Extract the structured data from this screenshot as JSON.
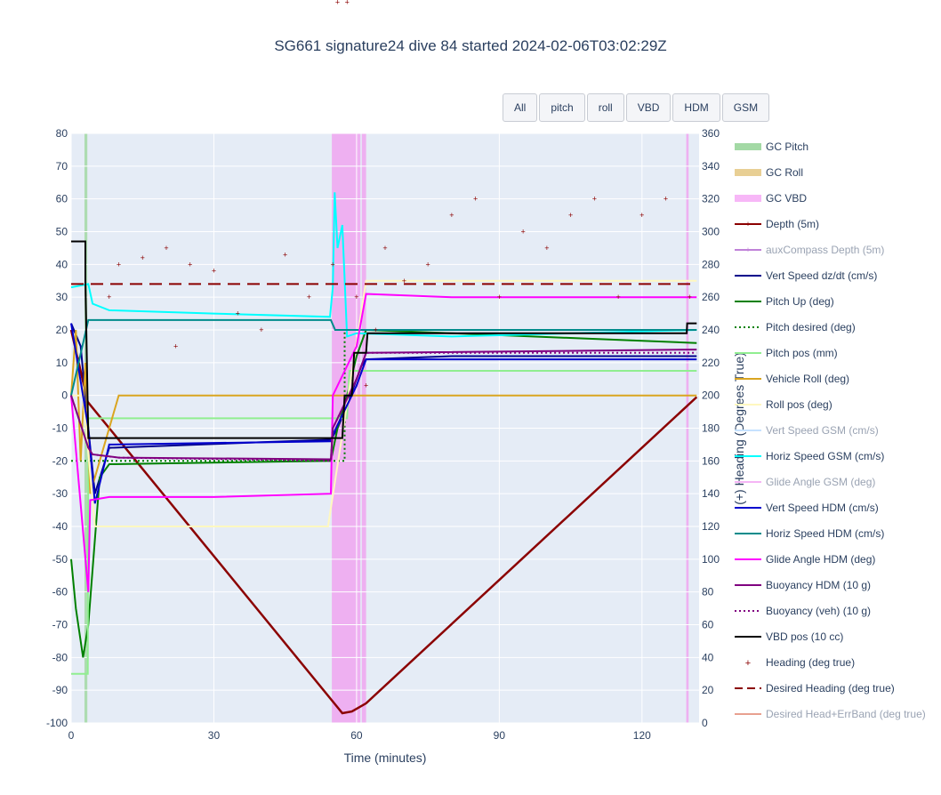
{
  "title": "SG661 signature24 dive 84 started 2024-02-06T03:02:29Z",
  "buttons": [
    "All",
    "pitch",
    "roll",
    "VBD",
    "HDM",
    "GSM"
  ],
  "chart_data": {
    "type": "line",
    "xlabel": "Time (minutes)",
    "xlim": [
      0,
      132
    ],
    "xticks": [
      0,
      30,
      60,
      90,
      120
    ],
    "y_left": {
      "label": "",
      "lim": [
        -100,
        80
      ],
      "ticks": [
        -100,
        -90,
        -80,
        -70,
        -60,
        -50,
        -40,
        -30,
        -20,
        -10,
        0,
        10,
        20,
        30,
        40,
        50,
        60,
        70,
        80
      ]
    },
    "y_right": {
      "label": "(+) Heading (Degrees True)",
      "lim": [
        0,
        360
      ],
      "ticks": [
        0,
        20,
        40,
        60,
        80,
        100,
        120,
        140,
        160,
        180,
        200,
        220,
        240,
        260,
        280,
        300,
        320,
        340,
        360
      ]
    },
    "grid": true,
    "legend_position": "right",
    "shaded_regions": [
      {
        "name": "GC Pitch",
        "color": "#a3d9a5",
        "intervals": [
          [
            2.8,
            3.4
          ]
        ]
      },
      {
        "name": "GC VBD",
        "color": "#f0a6f0",
        "intervals": [
          [
            54.8,
            60.8
          ],
          [
            61.1,
            62.0
          ],
          [
            129.3,
            129.8
          ]
        ]
      }
    ],
    "series": [
      {
        "name": "GC Pitch",
        "color": "#a3d9a5",
        "style": "band"
      },
      {
        "name": "GC Roll",
        "color": "#e8cf94",
        "style": "band"
      },
      {
        "name": "GC VBD",
        "color": "#f7b7f7",
        "style": "band"
      },
      {
        "name": "Depth (5m)",
        "color": "#8b0000",
        "style": "line-marker",
        "x": [
          0,
          3.5,
          57,
          59,
          62,
          131.5
        ],
        "y": [
          20,
          -2,
          -97,
          -96.5,
          -94,
          -0.5
        ]
      },
      {
        "name": "auxCompass Depth (5m)",
        "color": "#c082d8",
        "style": "line-marker",
        "dim": true
      },
      {
        "name": "Vert Speed dz/dt (cm/s)",
        "color": "#00008b",
        "style": "line",
        "x": [
          0,
          2,
          3.6,
          5,
          8,
          54.6,
          56,
          58,
          60,
          61,
          62,
          80,
          100,
          131.5
        ],
        "y": [
          22,
          15,
          -10,
          -30,
          -16,
          -13.5,
          -10,
          -3,
          5,
          9,
          11,
          12,
          12,
          12
        ]
      },
      {
        "name": "Pitch Up (deg)",
        "color": "#008000",
        "style": "line",
        "x": [
          0,
          1,
          2.5,
          3.6,
          6,
          8,
          54.6,
          56,
          58,
          60,
          62,
          80,
          131.5
        ],
        "y": [
          -50,
          -65,
          -80,
          -70,
          -25,
          -21,
          -20,
          -10,
          0,
          12,
          20,
          19,
          16
        ]
      },
      {
        "name": "Pitch desired (deg)",
        "color": "#008000",
        "style": "dot",
        "x": [
          0,
          3.6,
          54.6,
          57.5,
          57.5,
          131.5
        ],
        "y": [
          -20,
          -20,
          -20,
          -20,
          20,
          20
        ]
      },
      {
        "name": "Pitch pos (mm)",
        "color": "#90ee90",
        "style": "line",
        "x": [
          0,
          3.5,
          3.6,
          54.6,
          55,
          58,
          58.5,
          131.5
        ],
        "y": [
          -85,
          -85,
          -7,
          -7,
          -7,
          -7,
          7.5,
          7.5
        ]
      },
      {
        "name": "Vehicle Roll (deg)",
        "color": "#daa520",
        "style": "line",
        "x": [
          0,
          1,
          2,
          3,
          4,
          6,
          10,
          54.6,
          60,
          62,
          131.5
        ],
        "y": [
          0,
          20,
          -20,
          10,
          -30,
          -20,
          0,
          0,
          0,
          0,
          0
        ]
      },
      {
        "name": "Roll pos (deg)",
        "color": "#fff8c0",
        "style": "line",
        "x": [
          0,
          2.5,
          5,
          9,
          54,
          62,
          131.5
        ],
        "y": [
          0,
          0,
          -40,
          -40,
          -40,
          35,
          35
        ]
      },
      {
        "name": "Vert Speed GSM (cm/s)",
        "color": "#c6e2ff",
        "style": "line",
        "dim": true
      },
      {
        "name": "Horiz Speed GSM (cm/s)",
        "color": "#00ffff",
        "style": "line",
        "x": [
          0,
          3.6,
          4.5,
          8,
          30,
          54.4,
          55,
          55.4,
          56,
          57,
          58,
          60,
          80,
          131.5
        ],
        "y": [
          33,
          34,
          28,
          26,
          25,
          24,
          33,
          62,
          45,
          52,
          18,
          19,
          18,
          20
        ]
      },
      {
        "name": "Glide Angle GSM (deg)",
        "color": "#f5b5f5",
        "style": "line",
        "dim": true
      },
      {
        "name": "Vert Speed HDM (cm/s)",
        "color": "#0000cd",
        "style": "line",
        "x": [
          0,
          3.6,
          5,
          8,
          54.6,
          55,
          60,
          62,
          131.5
        ],
        "y": [
          22,
          -10,
          -33,
          -15,
          -14,
          -12,
          3,
          11,
          11
        ]
      },
      {
        "name": "Horiz Speed HDM (cm/s)",
        "color": "#008b8b",
        "style": "line",
        "x": [
          0,
          3.6,
          4,
          54.6,
          55.5,
          131.5
        ],
        "y": [
          0,
          23,
          23,
          23,
          20,
          20
        ]
      },
      {
        "name": "Glide Angle HDM (deg)",
        "color": "#ff00ff",
        "style": "line",
        "x": [
          0,
          3.6,
          4,
          8,
          30,
          54.6,
          55,
          60,
          62,
          80,
          131.5
        ],
        "y": [
          0,
          -60,
          -32,
          -31,
          -31,
          -30,
          0,
          15,
          31,
          30,
          30
        ]
      },
      {
        "name": "Buoyancy HDM (10 g)",
        "color": "#800080",
        "style": "line",
        "x": [
          0,
          3.6,
          4.5,
          10,
          54.6,
          55,
          60,
          62,
          131.5
        ],
        "y": [
          0,
          -16,
          -18,
          -19,
          -19.5,
          -10,
          5,
          13,
          14
        ]
      },
      {
        "name": "Buoyancy (veh) (10 g)",
        "color": "#800080",
        "style": "dot",
        "x": [
          0,
          3.6,
          4.5,
          10,
          54.6,
          55,
          60,
          62,
          131.5
        ],
        "y": [
          0,
          -16,
          -18,
          -19,
          -20,
          -10,
          5,
          13,
          13
        ]
      },
      {
        "name": "VBD pos (10 cc)",
        "color": "#000000",
        "style": "line",
        "x": [
          0,
          3,
          3,
          3.6,
          54.6,
          55,
          57,
          57.5,
          59,
          59.5,
          62,
          62.3,
          129.4,
          129.5,
          131.5
        ],
        "y": [
          47,
          47,
          35,
          -13,
          -13,
          -13,
          -13,
          0,
          0,
          13,
          13,
          19,
          19,
          22,
          22
        ]
      },
      {
        "name": "Heading (deg true)",
        "color": "#8b0000",
        "style": "marker",
        "x": [
          0,
          2,
          4,
          6,
          7,
          8,
          10,
          15,
          20,
          22,
          25,
          30,
          35,
          40,
          45,
          50,
          55,
          56,
          57,
          58,
          60,
          62,
          64,
          66,
          70,
          75,
          80,
          85,
          90,
          95,
          100,
          105,
          110,
          115,
          120,
          125,
          130
        ],
        "y": [
          300,
          160,
          260,
          350,
          355,
          30,
          40,
          42,
          45,
          15,
          40,
          38,
          25,
          20,
          43,
          30,
          40,
          120,
          230,
          120,
          30,
          3,
          20,
          45,
          35,
          40,
          55,
          60,
          30,
          50,
          45,
          55,
          60,
          30,
          55,
          60,
          30
        ]
      },
      {
        "name": "Desired Heading (deg true)",
        "color": "#8b0000",
        "style": "dash",
        "x": [
          0,
          131.5
        ],
        "y_right": [
          268,
          268
        ]
      },
      {
        "name": "Desired Head+ErrBand (deg true)",
        "color": "#e8a090",
        "style": "line",
        "dim": true
      }
    ]
  }
}
